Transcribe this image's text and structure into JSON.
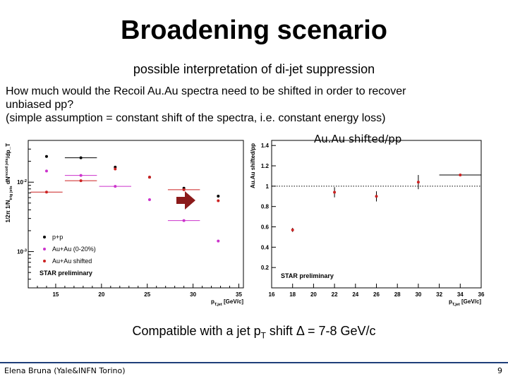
{
  "slide": {
    "title": "Broadening scenario",
    "subtitle": "possible interpretation of di-jet suppression",
    "question_lines": [
      "How much would the Recoil Au.Au spectra need to be shifted in order to recover",
      "unbiased pp?",
      "(simple assumption = constant shift of the spectra, i.e. constant energy loss)"
    ],
    "ratio_plot_label": "Au.Au shifted/pp",
    "conclusion_prefix": "Compatible with a jet p",
    "conclusion_sub": "T",
    "conclusion_suffix": " shift Δ = 7-8 GeV/c",
    "footer": "Elena Bruna (Yale&INFN Torino)",
    "page_number": "9",
    "colors": {
      "pp": "#000000",
      "auau": "#cc33cc",
      "shifted": "#cc2222",
      "arrow": "#8b1a1a",
      "footer_line": "#1f3f7a"
    }
  },
  "chart_data": [
    {
      "type": "scatter",
      "ylog": true,
      "xlabel": "p_{T,jet} [GeV/c]",
      "ylabel": "1/2π 1/N_{trig jets} dN^{recoil jets}/dp_T",
      "xlim": [
        12,
        35.5
      ],
      "ylim": [
        0.0003,
        0.04
      ],
      "xticks": [
        15,
        20,
        25,
        30,
        35
      ],
      "ytick_labels": [
        "10^{-2}",
        "10^{-3}"
      ],
      "series": [
        {
          "name": "p+p",
          "color": "#000000",
          "x": [
            14.0,
            17.75,
            21.5,
            25.25,
            29.0,
            32.75
          ],
          "y": [
            0.0235,
            0.0225,
            0.0165,
            0.0118,
            0.0082,
            0.0063
          ],
          "xerr": [
            0,
            1.75,
            0,
            0,
            0,
            0
          ]
        },
        {
          "name": "Au+Au (0-20%)",
          "color": "#cc33cc",
          "x": [
            14.0,
            17.75,
            21.5,
            25.25,
            29.0,
            32.75
          ],
          "y": [
            0.0145,
            0.0125,
            0.0087,
            0.0056,
            0.0028,
            0.00142
          ],
          "xerr": [
            0,
            1.75,
            1.75,
            0,
            1.75,
            0
          ]
        },
        {
          "name": "Au+Au shifted",
          "color": "#cc2222",
          "x": [
            14.0,
            17.75,
            21.5,
            25.25,
            29.0,
            32.75
          ],
          "y": [
            0.0072,
            0.0105,
            0.0155,
            0.0118,
            0.0078,
            0.0054
          ],
          "xerr": [
            1.75,
            1.75,
            0,
            0,
            1.75,
            0
          ]
        }
      ],
      "annotations": [
        "STAR preliminary"
      ]
    },
    {
      "type": "scatter",
      "xlabel": "p_{T,jet} [GeV/c]",
      "ylabel": "Au.Au shifted/pp",
      "xlim": [
        16,
        36
      ],
      "ylim": [
        0,
        1.45
      ],
      "xticks": [
        16,
        18,
        20,
        22,
        24,
        26,
        28,
        30,
        32,
        34,
        36
      ],
      "yticks": [
        0.2,
        0.4,
        0.6,
        0.8,
        1,
        1.2,
        1.4
      ],
      "reference_line": 1,
      "series": [
        {
          "color": "#cc2222",
          "x": [
            18.0,
            22.0,
            26.0,
            30.0,
            34.0
          ],
          "y": [
            0.57,
            0.94,
            0.9,
            1.04,
            1.11
          ],
          "yerr": [
            0.02,
            0.05,
            0.05,
            0.07,
            0.01
          ],
          "xerr": [
            0,
            0,
            0,
            0,
            2
          ]
        }
      ],
      "annotations": [
        "STAR preliminary"
      ]
    }
  ]
}
